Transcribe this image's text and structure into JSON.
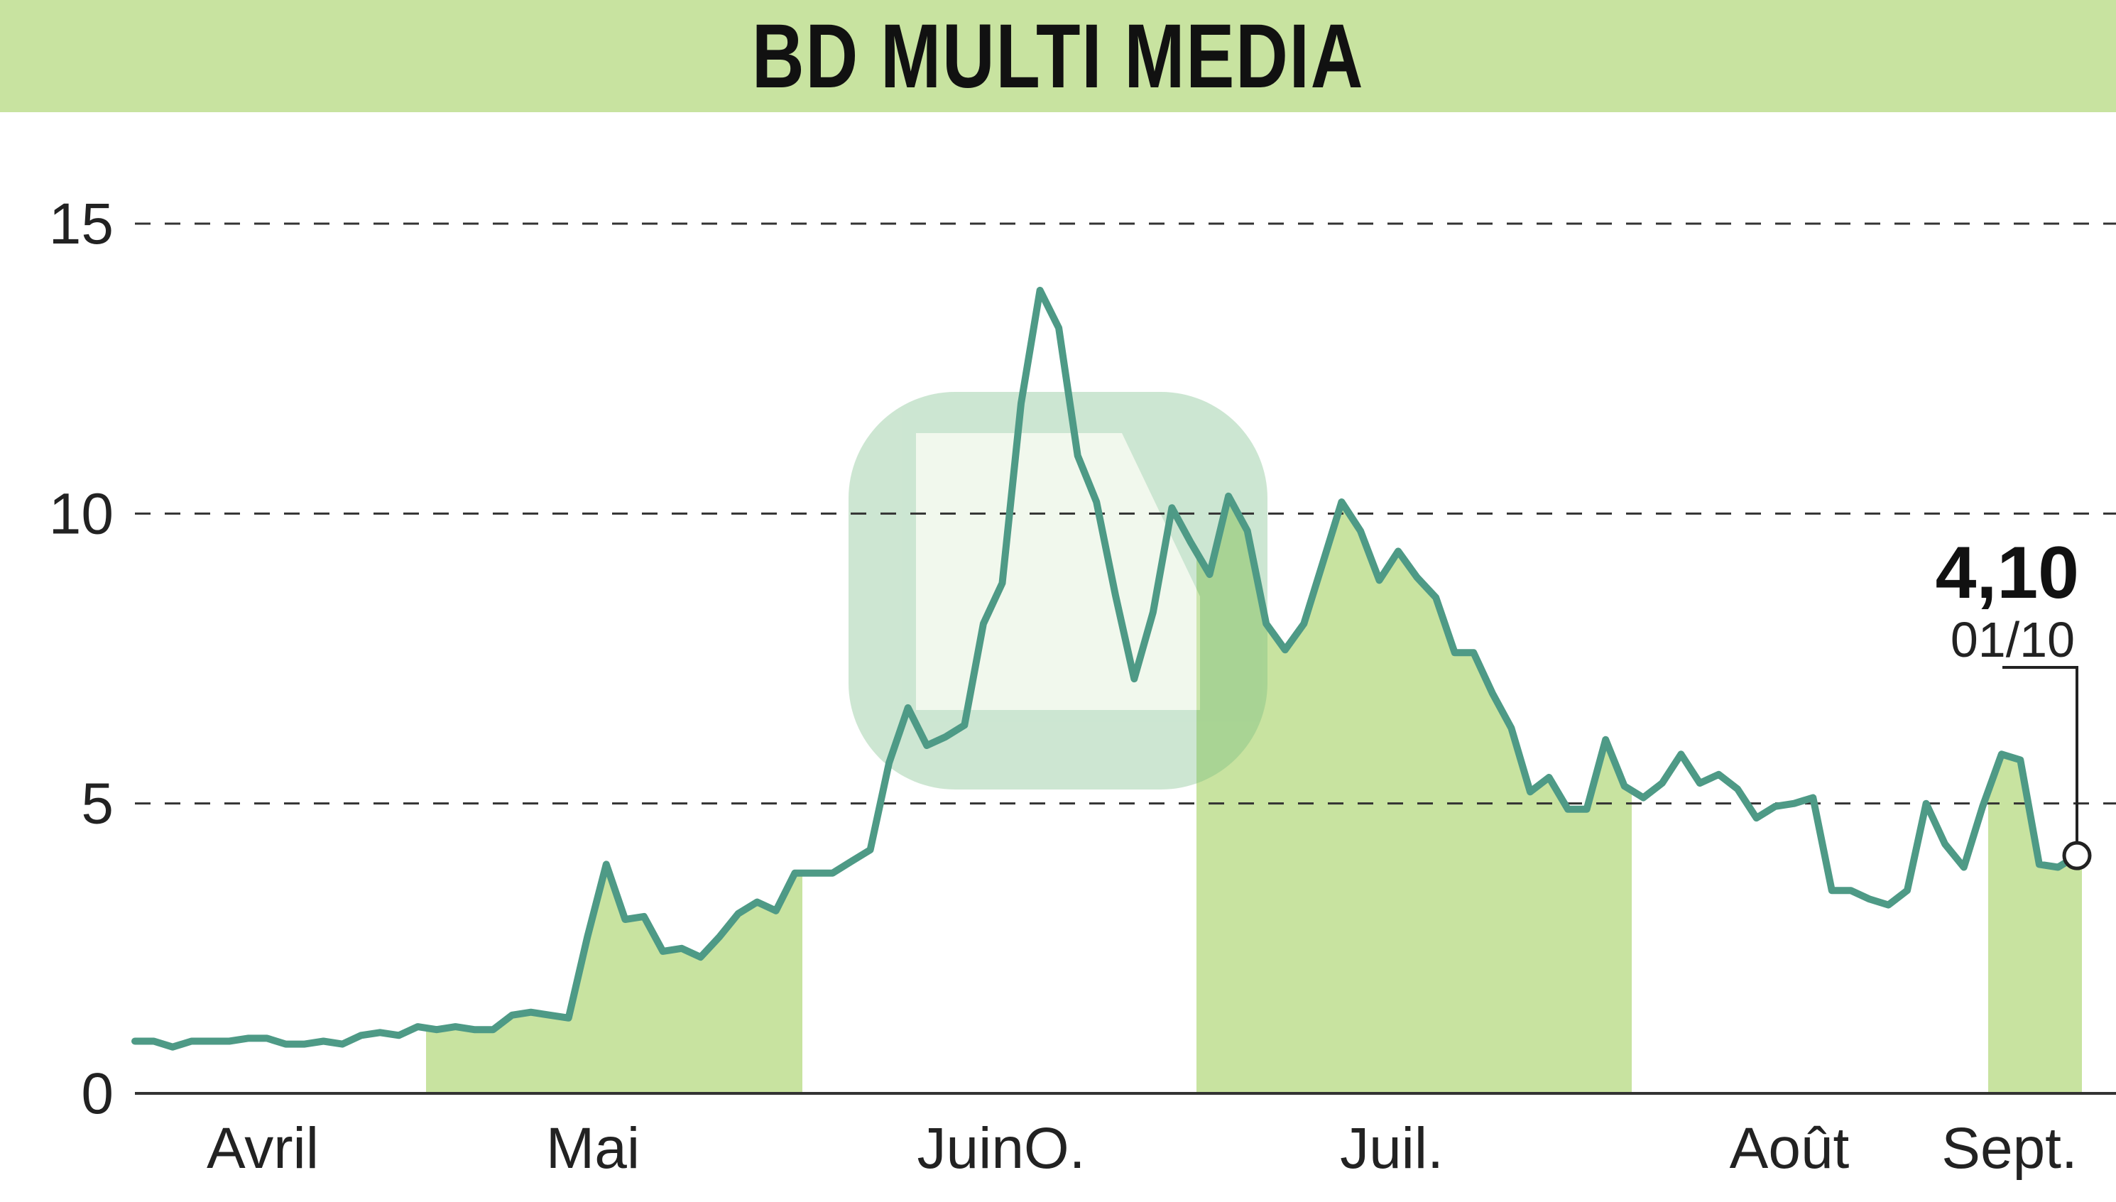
{
  "chart_data": {
    "type": "line",
    "title": "BD MULTI MEDIA",
    "xlabel": "",
    "ylabel": "",
    "ylim": [
      0,
      15
    ],
    "grid": "horizontal dashed",
    "yticks": [
      "0",
      "5",
      "10",
      "15"
    ],
    "month_labels": [
      "Avril",
      "Mai",
      "JuinO.",
      "Juil.",
      "Août",
      "Sept."
    ],
    "shaded_month_bands": [
      "Mai",
      "Juil.",
      "Sept."
    ],
    "series": [
      {
        "values": [
          0.9,
          0.9,
          0.8,
          0.9,
          0.9,
          0.9,
          0.95,
          0.95,
          0.85,
          0.85,
          0.9,
          0.85,
          1.0,
          1.05,
          1.0,
          1.15,
          1.1,
          1.15,
          1.1,
          1.1,
          1.35,
          1.4,
          1.35,
          1.3,
          2.7,
          3.95,
          3.0,
          3.05,
          2.45,
          2.5,
          2.35,
          2.7,
          3.1,
          3.3,
          3.15,
          3.8,
          3.8,
          3.8,
          4.0,
          4.2,
          5.7,
          6.65,
          6.0,
          6.15,
          6.35,
          8.1,
          8.8,
          11.9,
          13.85,
          13.2,
          11.0,
          10.2,
          8.6,
          7.15,
          8.3,
          10.1,
          9.5,
          8.95,
          10.3,
          9.7,
          8.1,
          7.65,
          8.1,
          9.15,
          10.2,
          9.7,
          8.85,
          9.35,
          8.9,
          8.55,
          7.6,
          7.6,
          6.9,
          6.3,
          5.2,
          5.45,
          4.9,
          4.9,
          6.1,
          5.3,
          5.1,
          5.35,
          5.85,
          5.35,
          5.5,
          5.25,
          4.75,
          4.95,
          5.0,
          5.1,
          3.5,
          3.5,
          3.35,
          3.25,
          3.5,
          5.0,
          4.3,
          3.9,
          4.95,
          5.85,
          5.75,
          3.95,
          3.9,
          4.1
        ]
      }
    ],
    "last_value_label": "4,10",
    "last_date_label": "01/10"
  },
  "colors": {
    "title_bar": "#c8e3a0",
    "band_fill": "#c8e3a0",
    "line": "#4e9a86",
    "grid": "#333333",
    "watermark": "#6fb87f"
  }
}
